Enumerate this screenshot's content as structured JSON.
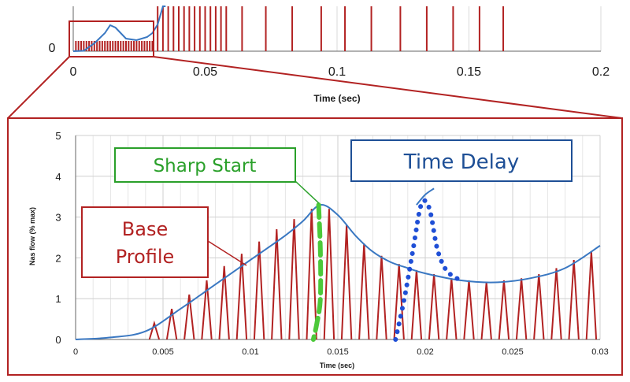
{
  "chart_data": [
    {
      "type": "line",
      "panel": "overview",
      "xlabel": "Time (sec)",
      "ylabel": "",
      "xlim": [
        0,
        0.2
      ],
      "x_ticks": [
        "0",
        "0.05",
        "0.1",
        "0.15",
        "0.2"
      ],
      "y_ticks": [
        "0"
      ],
      "grid": true,
      "series": [
        {
          "name": "",
          "type": "pulses",
          "color": "#b22222",
          "x": [
            0.001,
            0.002,
            0.003,
            0.004,
            0.005,
            0.006,
            0.007,
            0.008,
            0.009,
            0.01,
            0.011,
            0.012,
            0.013,
            0.014,
            0.015,
            0.016,
            0.017,
            0.018,
            0.019,
            0.02,
            0.021,
            0.022,
            0.023,
            0.024,
            0.025,
            0.026,
            0.027,
            0.028,
            0.029,
            0.03,
            0.032,
            0.034,
            0.036,
            0.038,
            0.04,
            0.042,
            0.044,
            0.046,
            0.048,
            0.05,
            0.052,
            0.054,
            0.056,
            0.058,
            0.064,
            0.073,
            0.083,
            0.094,
            0.103,
            0.113,
            0.124,
            0.134,
            0.144,
            0.154,
            0.163
          ]
        },
        {
          "name": "",
          "type": "envelope",
          "color": "#3a78c2",
          "x": [
            0,
            0.004,
            0.008,
            0.012,
            0.014,
            0.016,
            0.02,
            0.024,
            0.028,
            0.03,
            0.032,
            0.034,
            0.035
          ],
          "y": [
            0,
            0.05,
            1.0,
            2.3,
            3.3,
            3.0,
            1.6,
            1.4,
            1.8,
            2.3,
            3.4,
            6.0,
            9.0
          ]
        }
      ],
      "annotations": []
    },
    {
      "type": "line",
      "panel": "zoom",
      "xlabel": "Time (sec)",
      "ylabel": "Nas flow (% max)",
      "xlim": [
        0,
        0.03
      ],
      "ylim": [
        0,
        5
      ],
      "x_ticks": [
        "0",
        "0.005",
        "0.01",
        "0.015",
        "0.02",
        "0.025",
        "0.03"
      ],
      "y_ticks": [
        "0",
        "1",
        "2",
        "3",
        "4",
        "5"
      ],
      "grid": true,
      "series": [
        {
          "name": "Base Profile",
          "type": "envelope",
          "color": "#3a78c2",
          "x": [
            0,
            0.002,
            0.004,
            0.006,
            0.008,
            0.01,
            0.012,
            0.013,
            0.014,
            0.015,
            0.016,
            0.017,
            0.018,
            0.019,
            0.02,
            0.022,
            0.024,
            0.026,
            0.028,
            0.03
          ],
          "y": [
            0,
            0.05,
            0.2,
            0.75,
            1.35,
            1.95,
            2.55,
            2.9,
            3.3,
            3.05,
            2.55,
            2.15,
            1.9,
            1.75,
            1.62,
            1.45,
            1.4,
            1.5,
            1.75,
            2.3
          ]
        },
        {
          "name": "",
          "type": "pulses",
          "color": "#b22222",
          "x": [
            0.0045,
            0.0055,
            0.0065,
            0.0075,
            0.0085,
            0.0095,
            0.0105,
            0.0115,
            0.0125,
            0.0135,
            0.0145,
            0.0155,
            0.0165,
            0.0175,
            0.0185,
            0.0195,
            0.0205,
            0.0215,
            0.0225,
            0.0235,
            0.0245,
            0.0255,
            0.0265,
            0.0275,
            0.0285,
            0.0295
          ],
          "y": [
            0.4,
            0.75,
            1.1,
            1.45,
            1.8,
            2.1,
            2.4,
            2.7,
            2.95,
            3.2,
            3.2,
            2.8,
            2.35,
            2.05,
            1.85,
            1.7,
            1.6,
            1.5,
            1.45,
            1.4,
            1.45,
            1.5,
            1.6,
            1.75,
            1.95,
            2.15
          ]
        },
        {
          "name": "Sharp Start",
          "type": "dashed",
          "color": "#4cc93a",
          "x": [
            0.0139,
            0.014,
            0.014,
            0.0138,
            0.0136
          ],
          "y": [
            3.3,
            2.2,
            1.0,
            0.4,
            0.0
          ]
        },
        {
          "name": "Time Delay",
          "type": "dotted",
          "color": "#1f4fd6",
          "x": [
            0.0183,
            0.0188,
            0.0193,
            0.0197,
            0.02,
            0.0203,
            0.0207,
            0.0212,
            0.0218,
            0.0222
          ],
          "y": [
            0.0,
            1.0,
            2.2,
            3.2,
            3.4,
            3.1,
            2.2,
            1.7,
            1.5,
            1.4
          ]
        },
        {
          "name": "",
          "type": "envelope",
          "color": "#3a78c2",
          "x": [
            0.0195,
            0.02,
            0.0205
          ],
          "y": [
            3.3,
            3.55,
            3.7
          ]
        }
      ],
      "annotations": [
        {
          "text": "Sharp Start",
          "color": "#2aa02a"
        },
        {
          "text": "Time Delay",
          "color": "#1e4f96"
        },
        {
          "text": "Base Profile",
          "lines": [
            "Base",
            "Profile"
          ],
          "color": "#b22222"
        }
      ]
    }
  ]
}
